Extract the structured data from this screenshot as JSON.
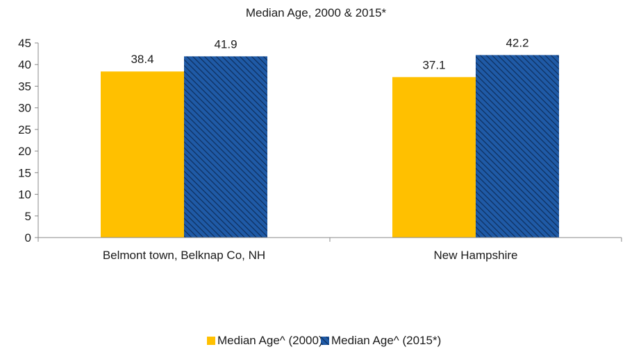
{
  "chart_data": {
    "type": "bar",
    "title": "Median Age, 2000 & 2015*",
    "categories": [
      "Belmont town, Belknap Co, NH",
      "New Hampshire"
    ],
    "series": [
      {
        "name": "Median Age^ (2000)",
        "values": [
          38.4,
          37.1
        ],
        "color": "#FFC000",
        "pattern": "solid"
      },
      {
        "name": "Median Age^ (2015*)",
        "values": [
          41.9,
          42.2
        ],
        "color": "#1F5AA6",
        "pattern": "diagonal-hatch"
      }
    ],
    "data_labels": [
      "38.4",
      "41.9",
      "37.1",
      "42.2"
    ],
    "ylim": [
      0,
      45
    ],
    "yticks": [
      0,
      5,
      10,
      15,
      20,
      25,
      30,
      35,
      40,
      45
    ],
    "grid": false,
    "legend_position": "bottom"
  }
}
